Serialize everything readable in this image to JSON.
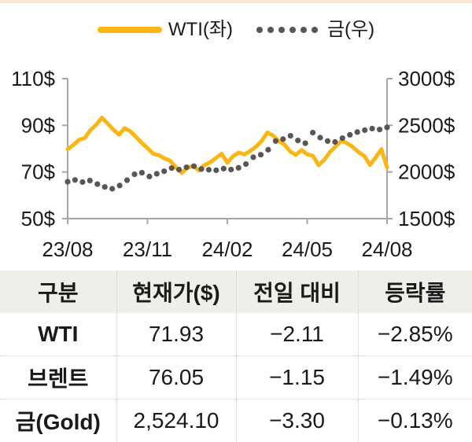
{
  "colors": {
    "top_band": "#FAE7D2",
    "wti_line": "#FBB615",
    "gold_dots": "#5B5651",
    "axis": "#A8A5A2",
    "text": "#1A1A1A",
    "table_header_bg": "#F0EEE9"
  },
  "legend": {
    "wti_label": "WTI(좌)",
    "gold_label": "금(우)"
  },
  "chart_data": {
    "type": "line",
    "title": "",
    "x_tick_labels": [
      "23/08",
      "23/11",
      "24/02",
      "24/05",
      "24/08"
    ],
    "left_axis": {
      "min": 50,
      "max": 110,
      "tick_values": [
        110,
        90,
        70,
        50
      ],
      "tick_labels": [
        "110$",
        "90$",
        "70$",
        "50$"
      ]
    },
    "right_axis": {
      "min": 1500,
      "max": 3000,
      "tick_values": [
        3000,
        2500,
        2000,
        1500
      ],
      "tick_labels": [
        "3000$",
        "2500$",
        "2000$",
        "1500$"
      ]
    },
    "series": [
      {
        "name": "WTI(좌)",
        "axis": "left",
        "style": "solid",
        "color": "#FBB615",
        "values": [
          79.8,
          81.6,
          83.8,
          84.6,
          88.0,
          90.2,
          93.3,
          90.8,
          88.2,
          86.0,
          88.8,
          87.4,
          85.0,
          82.4,
          80.2,
          77.8,
          77.2,
          75.8,
          74.8,
          71.8,
          69.6,
          71.8,
          72.6,
          70.7,
          73.0,
          74.2,
          76.0,
          77.8,
          74.0,
          76.8,
          78.3,
          77.5,
          79.0,
          80.8,
          83.2,
          86.9,
          85.6,
          83.3,
          81.8,
          78.8,
          77.3,
          79.4,
          77.6,
          76.9,
          72.9,
          75.2,
          78.6,
          81.0,
          83.4,
          82.3,
          80.7,
          78.5,
          76.9,
          73.0,
          76.2,
          79.8,
          71.9
        ]
      },
      {
        "name": "금(우)",
        "axis": "right",
        "style": "dotted",
        "color": "#5B5651",
        "values": [
          1895,
          1915,
          1892,
          1908,
          1870,
          1840,
          1820,
          1855,
          1912,
          1975,
          1992,
          1952,
          1980,
          2008,
          2042,
          2026,
          2050,
          2062,
          2032,
          2024,
          2018,
          2036,
          2026,
          2044,
          2085,
          2158,
          2185,
          2238,
          2332,
          2352,
          2388,
          2338,
          2308,
          2422,
          2368,
          2332,
          2322,
          2362,
          2398,
          2428,
          2448,
          2465,
          2455,
          2478
        ]
      }
    ]
  },
  "table": {
    "headers": [
      "구분",
      "현재가($)",
      "전일 대비",
      "등락률"
    ],
    "rows": [
      [
        "WTI",
        "71.93",
        "−2.11",
        "−2.85%"
      ],
      [
        "브렌트",
        "76.05",
        "−1.15",
        "−1.49%"
      ],
      [
        "금(Gold)",
        "2,524.10",
        "−3.30",
        "−0.13%"
      ]
    ]
  }
}
